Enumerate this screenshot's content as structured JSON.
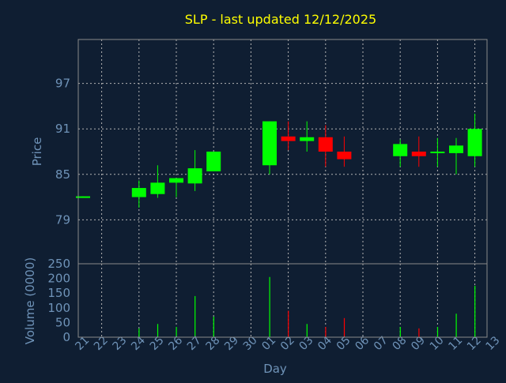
{
  "chart_data": {
    "type": "candlestick",
    "title": "SLP - last updated 12/12/2025",
    "xlabel": "Day",
    "price_panel": {
      "ylabel": "Price",
      "yticks": [
        79,
        85,
        91,
        97
      ],
      "ylim": [
        73.2,
        102.8
      ]
    },
    "volume_panel": {
      "ylabel": "Volume (0000)",
      "yticks": [
        0,
        50,
        100,
        150,
        200,
        250
      ],
      "ylim": [
        0,
        250
      ]
    },
    "x_ticks": [
      "21",
      "22",
      "23",
      "24",
      "25",
      "26",
      "27",
      "28",
      "29",
      "30",
      "01",
      "02",
      "03",
      "04",
      "05",
      "06",
      "07",
      "08",
      "09",
      "10",
      "11",
      "12",
      "13"
    ],
    "colors": {
      "up": "#00ff00",
      "down": "#ff0000",
      "title": "#ffff00",
      "axis_text": "#6f93b8",
      "background": "#0f1e32"
    },
    "candles": [
      {
        "day": "21",
        "open": 82.0,
        "high": 82.1,
        "low": 81.9,
        "close": 82.1,
        "volume": 0
      },
      {
        "day": "24",
        "open": 82.0,
        "high": 84.2,
        "low": 80.6,
        "close": 83.2,
        "volume": 30
      },
      {
        "day": "25",
        "open": 82.4,
        "high": 86.2,
        "low": 81.9,
        "close": 83.9,
        "volume": 45
      },
      {
        "day": "26",
        "open": 83.9,
        "high": 84.5,
        "low": 82.0,
        "close": 84.5,
        "volume": 35
      },
      {
        "day": "27",
        "open": 83.8,
        "high": 88.2,
        "low": 82.8,
        "close": 85.8,
        "volume": 140
      },
      {
        "day": "28",
        "open": 85.4,
        "high": 88.0,
        "low": 85.4,
        "close": 88.0,
        "volume": 70
      },
      {
        "day": "01",
        "open": 86.2,
        "high": 92.0,
        "low": 85.0,
        "close": 92.0,
        "volume": 205
      },
      {
        "day": "02",
        "open": 90.0,
        "high": 92.0,
        "low": 88.2,
        "close": 89.4,
        "volume": 90
      },
      {
        "day": "03",
        "open": 89.4,
        "high": 92.0,
        "low": 88.0,
        "close": 89.9,
        "volume": 45
      },
      {
        "day": "04",
        "open": 89.9,
        "high": 91.5,
        "low": 86.0,
        "close": 88.0,
        "volume": 35
      },
      {
        "day": "05",
        "open": 88.0,
        "high": 90.0,
        "low": 86.0,
        "close": 87.0,
        "volume": 65
      },
      {
        "day": "08",
        "open": 87.4,
        "high": 89.6,
        "low": 86.0,
        "close": 89.0,
        "volume": 35
      },
      {
        "day": "09",
        "open": 88.0,
        "high": 90.0,
        "low": 86.0,
        "close": 87.4,
        "volume": 30
      },
      {
        "day": "10",
        "open": 88.0,
        "high": 89.8,
        "low": 86.0,
        "close": 88.0,
        "volume": 35
      },
      {
        "day": "11",
        "open": 87.8,
        "high": 89.8,
        "low": 85.0,
        "close": 88.8,
        "volume": 80
      },
      {
        "day": "12",
        "open": 87.4,
        "high": 93.0,
        "low": 86.0,
        "close": 91.0,
        "volume": 175
      }
    ]
  }
}
